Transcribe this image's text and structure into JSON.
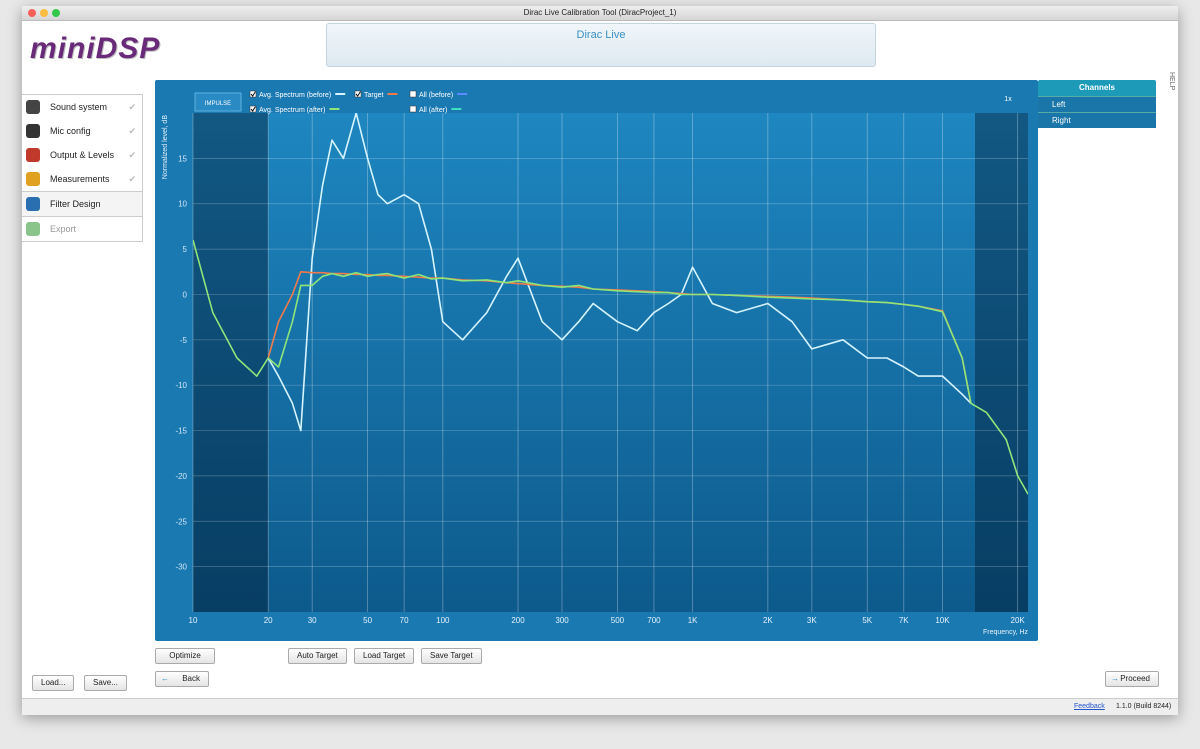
{
  "window": {
    "title": "Dirac Live Calibration Tool (DiracProject_1)"
  },
  "header": {
    "logo": "miniDSP",
    "banner": "Dirac Live"
  },
  "sidebar": {
    "items": [
      "Sound system",
      "Mic config",
      "Output & Levels",
      "Measurements",
      "Filter Design",
      "Export"
    ],
    "active": 4
  },
  "help": "HELP",
  "channels": {
    "title": "Channels",
    "items": [
      "Left",
      "Right"
    ]
  },
  "buttons": {
    "optimize": "Optimize",
    "auto_target": "Auto Target",
    "load_target": "Load Target",
    "save_target": "Save Target",
    "back": "Back",
    "proceed": "Proceed",
    "load": "Load...",
    "save": "Save..."
  },
  "footer": {
    "feedback": "Feedback",
    "version": "1.1.0 (Build 8244)"
  },
  "chart_data": {
    "type": "line",
    "impulse_button": "IMPULSE",
    "zoom": "1x",
    "x_label": "Frequency, Hz",
    "y_label": "Normalized level, dB",
    "xscale": "log",
    "grid": true,
    "correction_range": [
      20,
      13500
    ],
    "xlim": [
      10,
      22000
    ],
    "ylim": [
      -35,
      20
    ],
    "xticks": [
      10,
      20,
      30,
      50,
      70,
      100,
      200,
      300,
      500,
      700,
      {
        "value": 1000,
        "label": "1K"
      },
      {
        "value": 2000,
        "label": "2K"
      },
      {
        "value": 3000,
        "label": "3K"
      },
      {
        "value": 5000,
        "label": "5K"
      },
      {
        "value": 7000,
        "label": "7K"
      },
      {
        "value": 10000,
        "label": "10K"
      },
      {
        "value": 20000,
        "label": "20K"
      }
    ],
    "yticks": [
      -30,
      -25,
      -20,
      -15,
      -10,
      -5,
      0,
      5,
      10,
      15
    ],
    "x": [
      10,
      12,
      15,
      18,
      20,
      22,
      25,
      27,
      30,
      33,
      36,
      40,
      45,
      50,
      55,
      60,
      70,
      80,
      90,
      100,
      120,
      150,
      180,
      200,
      250,
      300,
      350,
      400,
      500,
      600,
      700,
      800,
      900,
      1000,
      1200,
      1500,
      2000,
      2500,
      3000,
      4000,
      5000,
      6000,
      7000,
      8000,
      10000,
      12000,
      13000,
      15000,
      18000,
      20000,
      22000
    ],
    "series": [
      {
        "name": "Avg. Spectrum (before)",
        "color": "#d6f4ff",
        "checked": true,
        "values": [
          null,
          null,
          null,
          null,
          -7,
          -9,
          -12,
          -15,
          4,
          12,
          17,
          15,
          20,
          15,
          11,
          10,
          11,
          10,
          5,
          -3,
          -5,
          -2,
          2,
          4,
          -3,
          -5,
          -3,
          -1,
          -3,
          -4,
          -2,
          -1,
          0,
          3,
          -1,
          -2,
          -1,
          -3,
          -6,
          -5,
          -7,
          -7,
          -8,
          -9,
          -9,
          -11,
          -12,
          null,
          null,
          null,
          null
        ]
      },
      {
        "name": "Target",
        "color": "#f07a4a",
        "checked": true,
        "values": [
          null,
          null,
          null,
          null,
          -7,
          -3,
          0,
          2.5,
          2.4,
          2.4,
          2.3,
          2.3,
          2.2,
          2.2,
          2.1,
          2.1,
          2,
          1.9,
          1.8,
          1.8,
          1.6,
          1.5,
          1.3,
          1.2,
          1,
          0.9,
          0.8,
          0.6,
          0.5,
          0.4,
          0.3,
          0.2,
          0.1,
          0,
          0,
          -0.1,
          -0.2,
          -0.3,
          -0.4,
          -0.6,
          -0.8,
          -0.9,
          -1.1,
          -1.3,
          -1.8,
          -7,
          -12,
          null,
          null,
          null,
          null
        ]
      },
      {
        "name": "Avg. Spectrum (after)",
        "color": "#8ee57a",
        "checked": true,
        "values": [
          6,
          -2,
          -7,
          -9,
          -7,
          -8,
          -3,
          1,
          1,
          2,
          2.3,
          2,
          2.4,
          2,
          2.2,
          2.3,
          1.8,
          2.2,
          1.7,
          1.8,
          1.5,
          1.6,
          1.3,
          1.5,
          1,
          0.8,
          1,
          0.6,
          0.4,
          0.3,
          0.2,
          0.2,
          0,
          0,
          0,
          -0.1,
          -0.3,
          -0.4,
          -0.5,
          -0.6,
          -0.8,
          -0.9,
          -1.1,
          -1.3,
          -1.9,
          -7,
          -12,
          -13,
          -16,
          -20,
          -22
        ]
      }
    ],
    "toggles": [
      {
        "name": "All (before)",
        "color": "#5b8cff",
        "checked": false
      },
      {
        "name": "All (after)",
        "color": "#3fe0c0",
        "checked": false
      }
    ]
  }
}
